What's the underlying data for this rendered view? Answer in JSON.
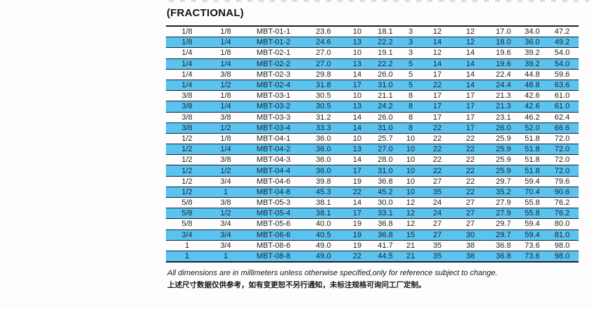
{
  "heading": "(FRACTIONAL)",
  "colors": {
    "highlight_row": "#5ac3ef",
    "grid_line": "#1b2030",
    "text": "#22242c"
  },
  "table": {
    "column_count": 12,
    "rows": [
      [
        "1/8",
        "1/8",
        "MBT-01-1",
        "23.6",
        "10",
        "18.1",
        "3",
        "12",
        "12",
        "17.0",
        "34.0",
        "47.2"
      ],
      [
        "1/8",
        "1/4",
        "MBT-01-2",
        "24.6",
        "13",
        "22.2",
        "3",
        "14",
        "12",
        "18.0",
        "36.0",
        "49.2"
      ],
      [
        "1/4",
        "1/8",
        "MBT-02-1",
        "27.0",
        "10",
        "19.1",
        "3",
        "12",
        "14",
        "19.6",
        "39.2",
        "54.0"
      ],
      [
        "1/4",
        "1/4",
        "MBT-02-2",
        "27.0",
        "13",
        "22.2",
        "5",
        "14",
        "14",
        "19.6",
        "39.2",
        "54.0"
      ],
      [
        "1/4",
        "3/8",
        "MBT-02-3",
        "29.8",
        "14",
        "26.0",
        "5",
        "17",
        "14",
        "22.4",
        "44.8",
        "59.6"
      ],
      [
        "1/4",
        "1/2",
        "MBT-02-4",
        "31.8",
        "17",
        "31.0",
        "5",
        "22",
        "14",
        "24.4",
        "48.8",
        "63.6"
      ],
      [
        "3/8",
        "1/8",
        "MBT-03-1",
        "30.5",
        "10",
        "21.1",
        "8",
        "17",
        "17",
        "21.3",
        "42.6",
        "61.0"
      ],
      [
        "3/8",
        "1/4",
        "MBT-03-2",
        "30.5",
        "13",
        "24.2",
        "8",
        "17",
        "17",
        "21.3",
        "42.6",
        "61.0"
      ],
      [
        "3/8",
        "3/8",
        "MBT-03-3",
        "31.2",
        "14",
        "26.0",
        "8",
        "17",
        "17",
        "23.1",
        "46.2",
        "62.4"
      ],
      [
        "3/8",
        "1/2",
        "MBT-03-4",
        "33.3",
        "14",
        "31.0",
        "8",
        "22",
        "17",
        "26.0",
        "52.0",
        "66.6"
      ],
      [
        "1/2",
        "1/8",
        "MBT-04-1",
        "36.0",
        "10",
        "25.7",
        "10",
        "22",
        "22",
        "25.9",
        "51.8",
        "72.0"
      ],
      [
        "1/2",
        "1/4",
        "MBT-04-2",
        "36.0",
        "13",
        "27.0",
        "10",
        "22",
        "22",
        "25.9",
        "51.8",
        "72.0"
      ],
      [
        "1/2",
        "3/8",
        "MBT-04-3",
        "36.0",
        "14",
        "28.0",
        "10",
        "22",
        "22",
        "25.9",
        "51.8",
        "72.0"
      ],
      [
        "1/2",
        "1/2",
        "MBT-04-4",
        "36.0",
        "17",
        "31.0",
        "10",
        "22",
        "22",
        "25.9",
        "51.8",
        "72.0"
      ],
      [
        "1/2",
        "3/4",
        "MBT-04-6",
        "39.8",
        "19",
        "36.8",
        "10",
        "27",
        "22",
        "29.7",
        "59.4",
        "79.6"
      ],
      [
        "1/2",
        "1",
        "MBT-04-8",
        "45.3",
        "22",
        "45.2",
        "10",
        "35",
        "22",
        "35.2",
        "70.4",
        "90.6"
      ],
      [
        "5/8",
        "3/8",
        "MBT-05-3",
        "38.1",
        "14",
        "30.0",
        "12",
        "24",
        "27",
        "27.9",
        "55.8",
        "76.2"
      ],
      [
        "5/8",
        "1/2",
        "MBT-05-4",
        "38.1",
        "17",
        "33.1",
        "12",
        "24",
        "27",
        "27.9",
        "55.8",
        "76.2"
      ],
      [
        "5/8",
        "3/4",
        "MBT-05-6",
        "40.0",
        "19",
        "36.8",
        "12",
        "27",
        "27",
        "29.7",
        "59.4",
        "80.0"
      ],
      [
        "3/4",
        "3/4",
        "MBT-06-6",
        "40.5",
        "19",
        "36.8",
        "15",
        "27",
        "30",
        "29.7",
        "59.4",
        "81.0"
      ],
      [
        "1",
        "3/4",
        "MBT-08-6",
        "49.0",
        "19",
        "41.7",
        "21",
        "35",
        "38",
        "36.8",
        "73.6",
        "98.0"
      ],
      [
        "1",
        "1",
        "MBT-08-8",
        "49.0",
        "22",
        "44.5",
        "21",
        "35",
        "38",
        "36.8",
        "73.6",
        "98.0"
      ]
    ]
  },
  "notes": {
    "english": "All dimensions are in millimeters unless otherwise specified,only for reference subject to change.",
    "chinese": "上述尺寸数据仅供参考，如有变更恕不另行通知，未标注规格可询问工厂定制。"
  }
}
